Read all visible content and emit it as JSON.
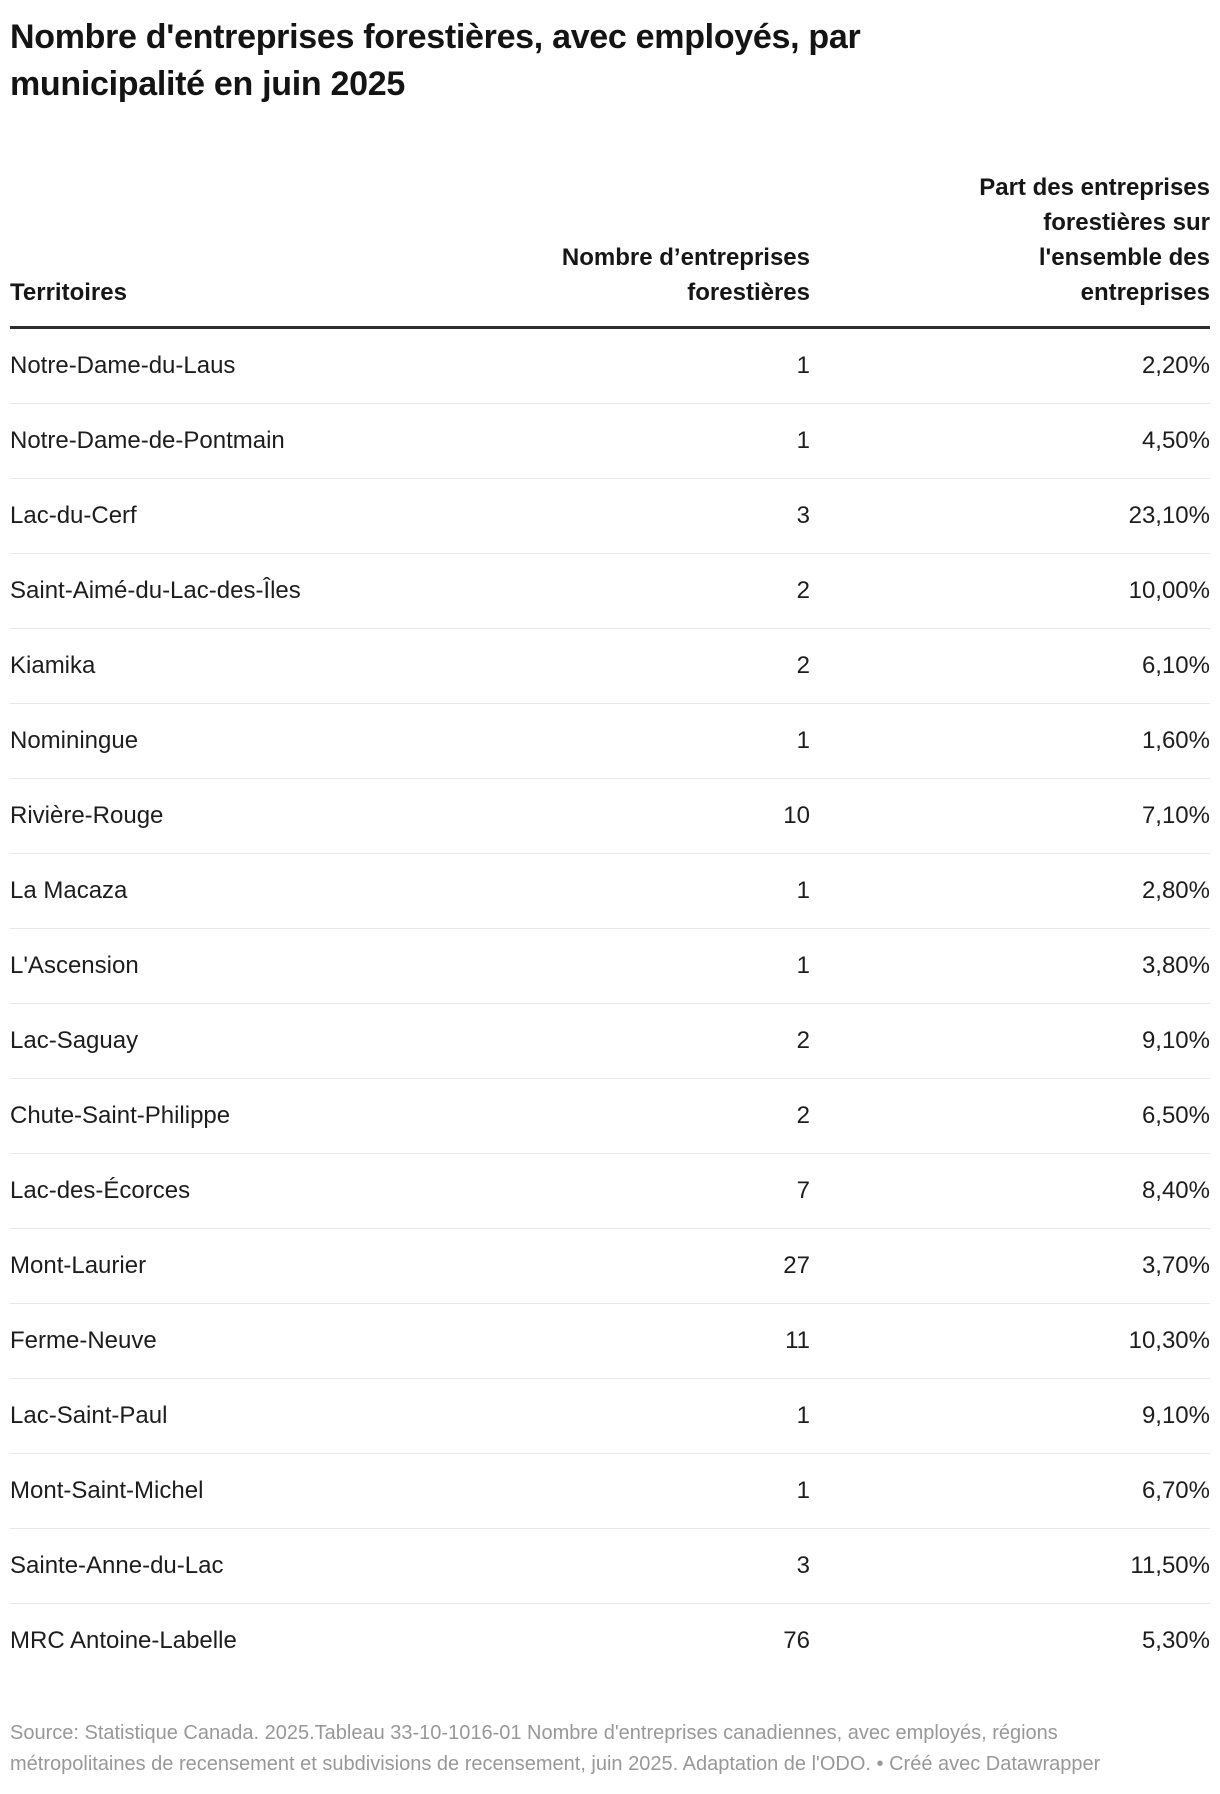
{
  "chart_data": {
    "type": "table",
    "title": "Nombre d'entreprises forestières, avec employés, par municipalité en juin 2025",
    "columns": [
      "Territoires",
      "Nombre d’entreprises forestières",
      "Part des entreprises forestières sur l'ensemble des entreprises"
    ],
    "rows": [
      {
        "territoire": "Notre-Dame-du-Laus",
        "nombre": "1",
        "part": "2,20%"
      },
      {
        "territoire": "Notre-Dame-de-Pontmain",
        "nombre": "1",
        "part": "4,50%"
      },
      {
        "territoire": "Lac-du-Cerf",
        "nombre": "3",
        "part": "23,10%"
      },
      {
        "territoire": "Saint-Aimé-du-Lac-des-Îles",
        "nombre": "2",
        "part": "10,00%"
      },
      {
        "territoire": "Kiamika",
        "nombre": "2",
        "part": "6,10%"
      },
      {
        "territoire": "Nominingue",
        "nombre": "1",
        "part": "1,60%"
      },
      {
        "territoire": "Rivière-Rouge",
        "nombre": "10",
        "part": "7,10%"
      },
      {
        "territoire": "La Macaza",
        "nombre": "1",
        "part": "2,80%"
      },
      {
        "territoire": "L'Ascension",
        "nombre": "1",
        "part": "3,80%"
      },
      {
        "territoire": "Lac-Saguay",
        "nombre": "2",
        "part": "9,10%"
      },
      {
        "territoire": "Chute-Saint-Philippe",
        "nombre": "2",
        "part": "6,50%"
      },
      {
        "territoire": "Lac-des-Écorces",
        "nombre": "7",
        "part": "8,40%"
      },
      {
        "territoire": "Mont-Laurier",
        "nombre": "27",
        "part": "3,70%"
      },
      {
        "territoire": "Ferme-Neuve",
        "nombre": "11",
        "part": "10,30%"
      },
      {
        "territoire": "Lac-Saint-Paul",
        "nombre": "1",
        "part": "9,10%"
      },
      {
        "territoire": "Mont-Saint-Michel",
        "nombre": "1",
        "part": "6,70%"
      },
      {
        "territoire": "Sainte-Anne-du-Lac",
        "nombre": "3",
        "part": "11,50%"
      },
      {
        "territoire": "MRC Antoine-Labelle",
        "nombre": "76",
        "part": "5,30%"
      }
    ],
    "source_note": "Source: Statistique Canada. 2025.Tableau 33-10-1016-01 Nombre d'entreprises canadiennes, avec employés, régions métropolitaines de recensement et subdivisions de recensement, juin 2025. Adaptation de l'ODO. • Créé avec Datawrapper",
    "layout": {
      "legend_position": "none",
      "grid": "horizontal-row-separators"
    },
    "colors": {
      "title_text": "#141414",
      "body_text": "#1d1d1d",
      "header_rule": "#2e2e2e",
      "row_separator": "#e8e8e8",
      "source_text": "#989898",
      "background": "#ffffff"
    }
  }
}
